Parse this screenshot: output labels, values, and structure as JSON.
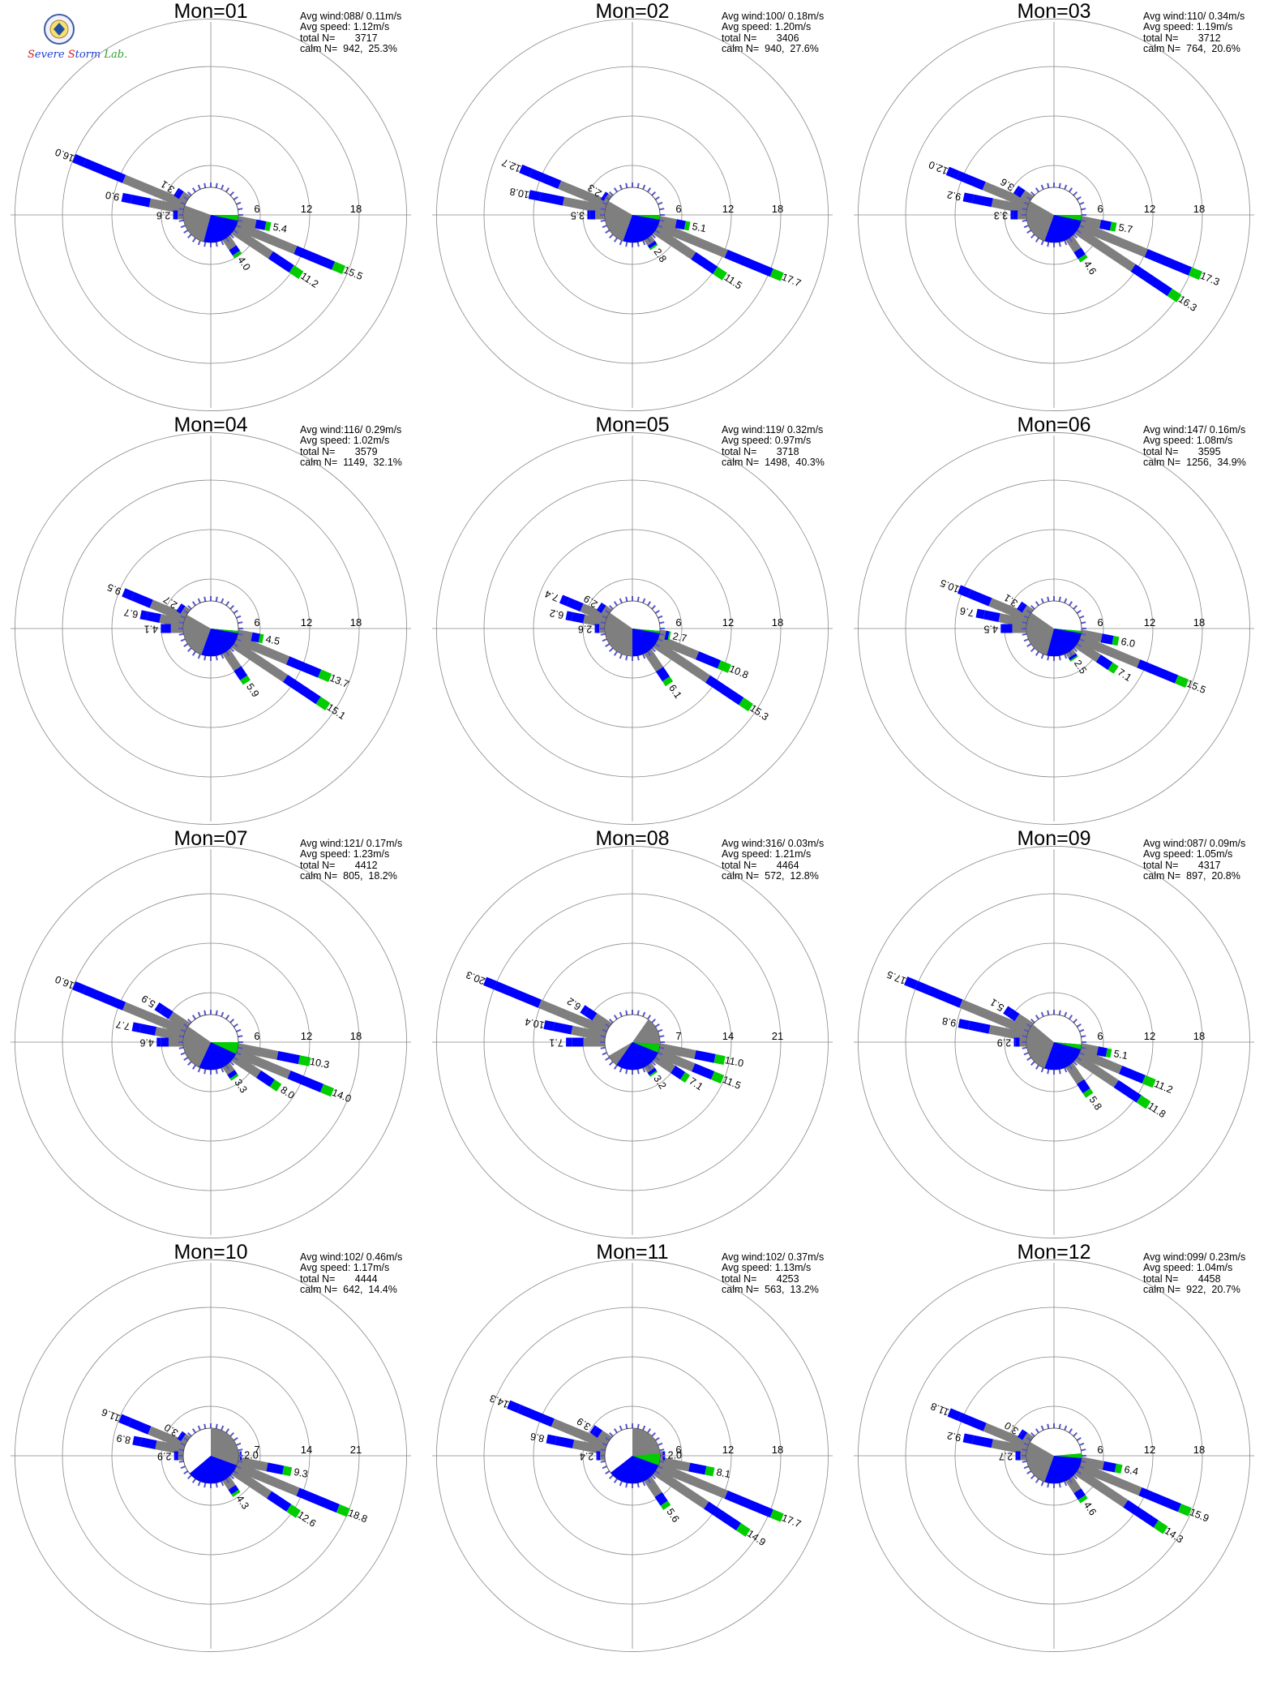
{
  "logo": {
    "name": "severe-storm-lab-logo",
    "text": "Severe Storm Lab."
  },
  "colors": {
    "blue": "#0000ff",
    "gray": "#7f7f7f",
    "green": "#00cc00",
    "white": "#ffffff",
    "axis": "#888888"
  },
  "stat_labels": {
    "avg_wind": "Avg wind:",
    "avg_speed": "Avg speed:",
    "total": "total N=",
    "calm": "calm N="
  },
  "chart_data": [
    {
      "type": "windrose",
      "title": "Mon=01",
      "ticks": [
        6,
        12,
        18
      ],
      "avg_wind": "088/ 0.11m/s",
      "avg_speed": "1.12m/s",
      "total_n": "3717",
      "calm_n": "942,  25.3%",
      "petals": [
        {
          "dir": 292.5,
          "value": 16.0,
          "label": "16.0"
        },
        {
          "dir": 281.25,
          "value": 9.0,
          "label": "9.0"
        },
        {
          "dir": 303.75,
          "value": 3.1,
          "label": "3.1"
        },
        {
          "dir": 270,
          "value": 2.6,
          "label": "2.6"
        },
        {
          "dir": 112.5,
          "value": 15.5,
          "label": "15.5"
        },
        {
          "dir": 123.75,
          "value": 11.2,
          "label": "11.2"
        },
        {
          "dir": 101.25,
          "value": 5.4,
          "label": "5.4"
        },
        {
          "dir": 146.25,
          "value": 4.0,
          "label": "4.0"
        }
      ],
      "center": {
        "gray": [
          195,
          290
        ],
        "blue": [
          90,
          195
        ],
        "green": [
          90,
          102
        ]
      }
    },
    {
      "type": "windrose",
      "title": "Mon=02",
      "ticks": [
        6,
        12,
        18
      ],
      "avg_wind": "100/ 0.18m/s",
      "avg_speed": "1.20m/s",
      "total_n": "3406",
      "calm_n": "940,  27.6%",
      "petals": [
        {
          "dir": 292.5,
          "value": 12.7,
          "label": "12.7"
        },
        {
          "dir": 281.25,
          "value": 10.8,
          "label": "10.8"
        },
        {
          "dir": 303.75,
          "value": 2.3,
          "label": "2.3"
        },
        {
          "dir": 270,
          "value": 3.5,
          "label": "3.5"
        },
        {
          "dir": 112.5,
          "value": 17.7,
          "label": "17.7"
        },
        {
          "dir": 123.75,
          "value": 11.5,
          "label": "11.5"
        },
        {
          "dir": 101.25,
          "value": 5.1,
          "label": "5.1"
        },
        {
          "dir": 146.25,
          "value": 2.8,
          "label": "2.8"
        }
      ],
      "center": {
        "gray": [
          200,
          300
        ],
        "blue": [
          90,
          200
        ],
        "green": [
          90,
          100
        ]
      }
    },
    {
      "type": "windrose",
      "title": "Mon=03",
      "ticks": [
        6,
        12,
        18
      ],
      "avg_wind": "110/ 0.34m/s",
      "avg_speed": "1.19m/s",
      "total_n": "3712",
      "calm_n": "764,  20.6%",
      "petals": [
        {
          "dir": 292.5,
          "value": 12.0,
          "label": "12.0"
        },
        {
          "dir": 281.25,
          "value": 9.2,
          "label": "9.2"
        },
        {
          "dir": 303.75,
          "value": 3.6,
          "label": "3.6"
        },
        {
          "dir": 270,
          "value": 3.3,
          "label": "3.3"
        },
        {
          "dir": 112.5,
          "value": 17.3,
          "label": "17.3"
        },
        {
          "dir": 123.75,
          "value": 16.3,
          "label": "16.3"
        },
        {
          "dir": 101.25,
          "value": 5.7,
          "label": "5.7"
        },
        {
          "dir": 146.25,
          "value": 4.6,
          "label": "4.6"
        }
      ],
      "center": {
        "gray": [
          200,
          300
        ],
        "blue": [
          90,
          200
        ],
        "green": [
          90,
          102
        ]
      }
    },
    {
      "type": "windrose",
      "title": "Mon=04",
      "ticks": [
        6,
        12,
        18
      ],
      "avg_wind": "116/ 0.29m/s",
      "avg_speed": "1.02m/s",
      "total_n": "3579",
      "calm_n": "1149,  32.1%",
      "petals": [
        {
          "dir": 292.5,
          "value": 9.5,
          "label": "9.5"
        },
        {
          "dir": 281.25,
          "value": 6.7,
          "label": "6.7"
        },
        {
          "dir": 303.75,
          "value": 2.7,
          "label": "2.7"
        },
        {
          "dir": 270,
          "value": 4.1,
          "label": "4.1"
        },
        {
          "dir": 112.5,
          "value": 13.7,
          "label": "13.7"
        },
        {
          "dir": 123.75,
          "value": 15.1,
          "label": "15.1"
        },
        {
          "dir": 101.25,
          "value": 4.5,
          "label": "4.5"
        },
        {
          "dir": 146.25,
          "value": 5.9,
          "label": "5.9"
        }
      ],
      "center": {
        "gray": [
          200,
          300
        ],
        "blue": [
          95,
          200
        ],
        "green": [
          95,
          100
        ]
      }
    },
    {
      "type": "windrose",
      "title": "Mon=05",
      "ticks": [
        6,
        12,
        18
      ],
      "avg_wind": "119/ 0.32m/s",
      "avg_speed": "0.97m/s",
      "total_n": "3718",
      "calm_n": "1498,  40.3%",
      "petals": [
        {
          "dir": 292.5,
          "value": 7.4,
          "label": "7.4"
        },
        {
          "dir": 281.25,
          "value": 6.2,
          "label": "6.2"
        },
        {
          "dir": 303.75,
          "value": 2.9,
          "label": "2.9"
        },
        {
          "dir": 270,
          "value": 2.6,
          "label": "2.6"
        },
        {
          "dir": 112.5,
          "value": 10.8,
          "label": "10.8"
        },
        {
          "dir": 123.75,
          "value": 15.3,
          "label": "15.3"
        },
        {
          "dir": 101.25,
          "value": 2.7,
          "label": "2.7"
        },
        {
          "dir": 146.25,
          "value": 6.1,
          "label": "6.1"
        }
      ],
      "center": {
        "gray": [
          180,
          305
        ],
        "blue": [
          95,
          180
        ],
        "green": [
          95,
          100
        ]
      }
    },
    {
      "type": "windrose",
      "title": "Mon=06",
      "ticks": [
        6,
        12,
        18
      ],
      "avg_wind": "147/ 0.16m/s",
      "avg_speed": "1.08m/s",
      "total_n": "3595",
      "calm_n": "1256,  34.9%",
      "petals": [
        {
          "dir": 292.5,
          "value": 10.5,
          "label": "10.5"
        },
        {
          "dir": 281.25,
          "value": 7.6,
          "label": "7.6"
        },
        {
          "dir": 303.75,
          "value": 3.1,
          "label": "3.1"
        },
        {
          "dir": 270,
          "value": 4.5,
          "label": "4.5"
        },
        {
          "dir": 112.5,
          "value": 15.5,
          "label": "15.5"
        },
        {
          "dir": 123.75,
          "value": 7.1,
          "label": "7.1"
        },
        {
          "dir": 101.25,
          "value": 6.0,
          "label": "6.0"
        },
        {
          "dir": 146.25,
          "value": 2.5,
          "label": "2.5"
        }
      ],
      "center": {
        "gray": [
          195,
          305
        ],
        "blue": [
          95,
          195
        ],
        "green": [
          95,
          100
        ]
      }
    },
    {
      "type": "windrose",
      "title": "Mon=07",
      "ticks": [
        6,
        12,
        18
      ],
      "avg_wind": "121/ 0.17m/s",
      "avg_speed": "1.23m/s",
      "total_n": "4412",
      "calm_n": "805,  18.2%",
      "petals": [
        {
          "dir": 292.5,
          "value": 16.0,
          "label": "16.0"
        },
        {
          "dir": 281.25,
          "value": 7.7,
          "label": "7.7"
        },
        {
          "dir": 303.75,
          "value": 5.9,
          "label": "5.9"
        },
        {
          "dir": 270,
          "value": 4.6,
          "label": "4.6"
        },
        {
          "dir": 112.5,
          "value": 14.0,
          "label": "14.0"
        },
        {
          "dir": 123.75,
          "value": 8.0,
          "label": "8.0"
        },
        {
          "dir": 101.25,
          "value": 10.3,
          "label": "10.3"
        },
        {
          "dir": 146.25,
          "value": 3.3,
          "label": "3.3"
        }
      ],
      "center": {
        "gray": [
          205,
          305
        ],
        "blue": [
          90,
          205
        ],
        "green": [
          90,
          115
        ]
      }
    },
    {
      "type": "windrose",
      "title": "Mon=08",
      "ticks": [
        7,
        14,
        21
      ],
      "avg_wind": "316/ 0.03m/s",
      "avg_speed": "1.21m/s",
      "total_n": "4464",
      "calm_n": "572,  12.8%",
      "petals": [
        {
          "dir": 292.5,
          "value": 20.3,
          "label": "20.3"
        },
        {
          "dir": 281.25,
          "value": 10.4,
          "label": "10.4"
        },
        {
          "dir": 303.75,
          "value": 6.2,
          "label": "6.2"
        },
        {
          "dir": 270,
          "value": 7.1,
          "label": "7.1"
        },
        {
          "dir": 112.5,
          "value": 11.5,
          "label": "11.5"
        },
        {
          "dir": 123.75,
          "value": 7.1,
          "label": "7.1"
        },
        {
          "dir": 101.25,
          "value": 11.0,
          "label": "11.0"
        },
        {
          "dir": 146.25,
          "value": 3.2,
          "label": "3.2"
        }
      ],
      "center": {
        "gray": [
          35,
          240
        ],
        "blue": [
          95,
          215
        ],
        "green": [
          95,
          112
        ]
      }
    },
    {
      "type": "windrose",
      "title": "Mon=09",
      "ticks": [
        6,
        12,
        18
      ],
      "avg_wind": "087/ 0.09m/s",
      "avg_speed": "1.05m/s",
      "total_n": "4317",
      "calm_n": "897,  20.8%",
      "petals": [
        {
          "dir": 292.5,
          "value": 17.5,
          "label": "17.5"
        },
        {
          "dir": 281.25,
          "value": 9.8,
          "label": "9.8"
        },
        {
          "dir": 303.75,
          "value": 5.1,
          "label": "5.1"
        },
        {
          "dir": 270,
          "value": 2.9,
          "label": "2.9"
        },
        {
          "dir": 112.5,
          "value": 11.2,
          "label": "11.2"
        },
        {
          "dir": 123.75,
          "value": 11.8,
          "label": "11.8"
        },
        {
          "dir": 101.25,
          "value": 5.1,
          "label": "5.1"
        },
        {
          "dir": 146.25,
          "value": 5.8,
          "label": "5.8"
        }
      ],
      "center": {
        "gray": [
          200,
          310
        ],
        "blue": [
          95,
          200
        ],
        "green": [
          95,
          105
        ]
      }
    },
    {
      "type": "windrose",
      "title": "Mon=10",
      "ticks": [
        7,
        14,
        21
      ],
      "avg_wind": "102/ 0.46m/s",
      "avg_speed": "1.17m/s",
      "total_n": "4444",
      "calm_n": "642,  14.4%",
      "petals": [
        {
          "dir": 292.5,
          "value": 11.6,
          "label": "11.6"
        },
        {
          "dir": 281.25,
          "value": 8.9,
          "label": "8.9"
        },
        {
          "dir": 303.75,
          "value": 3.0,
          "label": "3.0"
        },
        {
          "dir": 270,
          "value": 2.9,
          "label": "2.9"
        },
        {
          "dir": 112.5,
          "value": 18.8,
          "label": "18.8"
        },
        {
          "dir": 123.75,
          "value": 12.6,
          "label": "12.6"
        },
        {
          "dir": 101.25,
          "value": 9.3,
          "label": "9.3"
        },
        {
          "dir": 146.25,
          "value": 4.3,
          "label": "4.3"
        },
        {
          "dir": 90,
          "value": 2.0,
          "label": "2.0"
        }
      ],
      "center": {
        "gray": [
          0,
          110
        ],
        "blue": [
          110,
          230
        ],
        "green": [
          0,
          0
        ]
      }
    },
    {
      "type": "windrose",
      "title": "Mon=11",
      "ticks": [
        6,
        12,
        18
      ],
      "avg_wind": "102/ 0.37m/s",
      "avg_speed": "1.13m/s",
      "total_n": "4253",
      "calm_n": "563,  13.2%",
      "petals": [
        {
          "dir": 292.5,
          "value": 14.3,
          "label": "14.3"
        },
        {
          "dir": 281.25,
          "value": 8.6,
          "label": "8.6"
        },
        {
          "dir": 303.75,
          "value": 3.9,
          "label": "3.9"
        },
        {
          "dir": 270,
          "value": 2.4,
          "label": "2.4"
        },
        {
          "dir": 112.5,
          "value": 17.7,
          "label": "17.7"
        },
        {
          "dir": 123.75,
          "value": 14.9,
          "label": "14.9"
        },
        {
          "dir": 101.25,
          "value": 8.1,
          "label": "8.1"
        },
        {
          "dir": 146.25,
          "value": 5.6,
          "label": "5.6"
        },
        {
          "dir": 90,
          "value": 2.0,
          "label": "2.0"
        }
      ],
      "center": {
        "gray": [
          0,
          108
        ],
        "blue": [
          108,
          232
        ],
        "green": [
          85,
          110
        ]
      }
    },
    {
      "type": "windrose",
      "title": "Mon=12",
      "ticks": [
        6,
        12,
        18
      ],
      "avg_wind": "099/ 0.23m/s",
      "avg_speed": "1.04m/s",
      "total_n": "4458",
      "calm_n": "922,  20.7%",
      "petals": [
        {
          "dir": 292.5,
          "value": 11.8,
          "label": "11.8"
        },
        {
          "dir": 281.25,
          "value": 9.2,
          "label": "9.2"
        },
        {
          "dir": 303.75,
          "value": 3.0,
          "label": "3.0"
        },
        {
          "dir": 270,
          "value": 2.7,
          "label": "2.7"
        },
        {
          "dir": 112.5,
          "value": 15.9,
          "label": "15.9"
        },
        {
          "dir": 123.75,
          "value": 14.3,
          "label": "14.3"
        },
        {
          "dir": 101.25,
          "value": 6.4,
          "label": "6.4"
        },
        {
          "dir": 146.25,
          "value": 4.6,
          "label": "4.6"
        }
      ],
      "center": {
        "gray": [
          200,
          300
        ],
        "blue": [
          90,
          200
        ],
        "green": [
          85,
          95
        ]
      }
    }
  ]
}
